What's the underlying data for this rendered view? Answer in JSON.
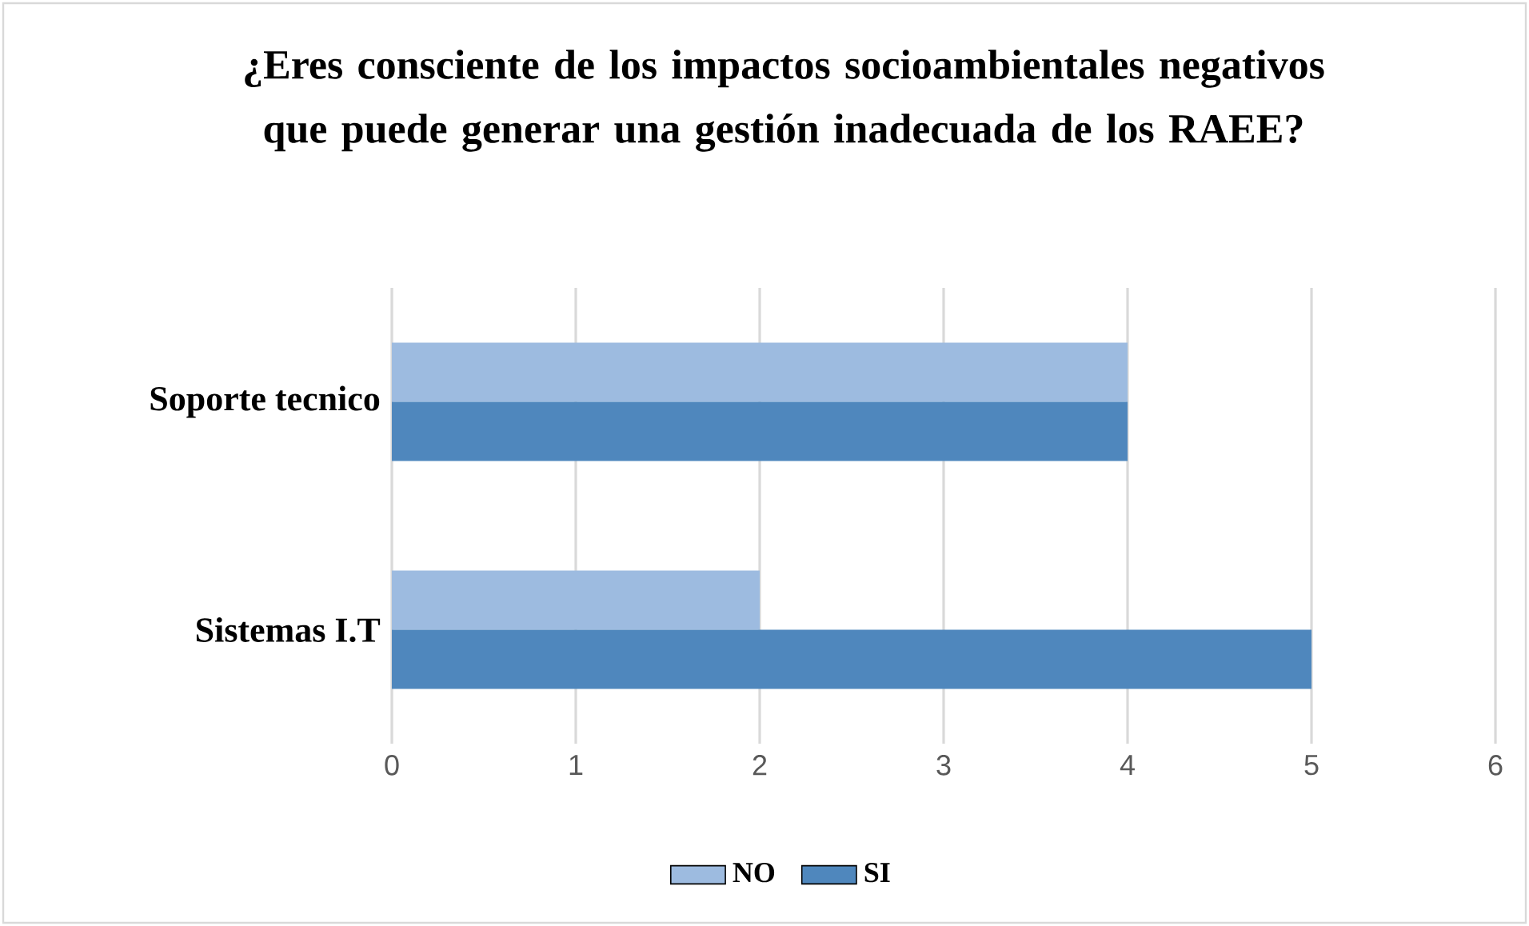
{
  "chart_data": {
    "type": "bar",
    "orientation": "horizontal",
    "title": "¿Eres consciente de los impactos socioambientales negativos que puede generar una gestión inadecuada de los RAEE?",
    "categories": [
      "Soporte tecnico",
      "Sistemas I.T"
    ],
    "series": [
      {
        "name": "NO",
        "color": "#9dbbe0",
        "values": [
          4,
          2
        ]
      },
      {
        "name": "SI",
        "color": "#4f87bd",
        "values": [
          4,
          5
        ]
      }
    ],
    "xlim": [
      0,
      6
    ],
    "xticks": [
      0,
      1,
      2,
      3,
      4,
      5,
      6
    ],
    "grid": "x",
    "legend": "bottom"
  }
}
